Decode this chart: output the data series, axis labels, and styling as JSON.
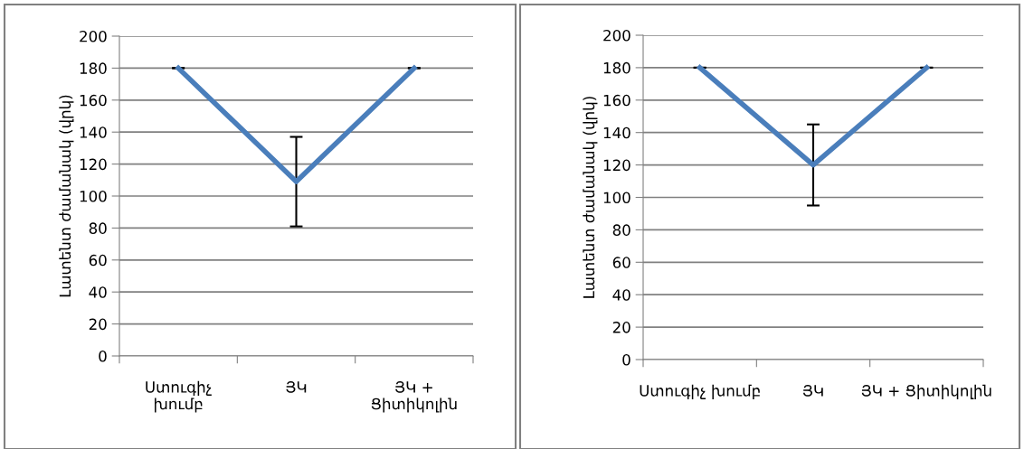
{
  "chart_data": [
    {
      "type": "line",
      "categories": [
        "Ստուգիչ\nխումբ",
        "ՅԿ",
        "ՅԿ +\nՑիտիկոլին"
      ],
      "ylabel": "Լատենտ ժամանակ (վրկ)",
      "series": [
        {
          "color": "#4a7ebb",
          "values": [
            180,
            109,
            180
          ],
          "errors": [
            0,
            28,
            0
          ]
        }
      ],
      "ylim": [
        0,
        200
      ],
      "yticks": [
        0,
        20,
        40,
        60,
        80,
        100,
        120,
        140,
        160,
        180,
        200
      ],
      "grid": "y",
      "marker": "none",
      "line_style": "solid"
    },
    {
      "type": "line",
      "categories": [
        "Ստուգիչ խումբ",
        "ՅԿ",
        "ՅԿ + Ցիտիկոլին"
      ],
      "ylabel": "Լատենտ ժամանակ (վրկ)",
      "series": [
        {
          "color": "#4a7ebb",
          "values": [
            180,
            120,
            180
          ],
          "errors": [
            0,
            25,
            0
          ]
        }
      ],
      "ylim": [
        0,
        200
      ],
      "yticks": [
        0,
        20,
        40,
        60,
        80,
        100,
        120,
        140,
        160,
        180,
        200
      ],
      "grid": "y",
      "marker": "none",
      "line_style": "solid"
    }
  ]
}
